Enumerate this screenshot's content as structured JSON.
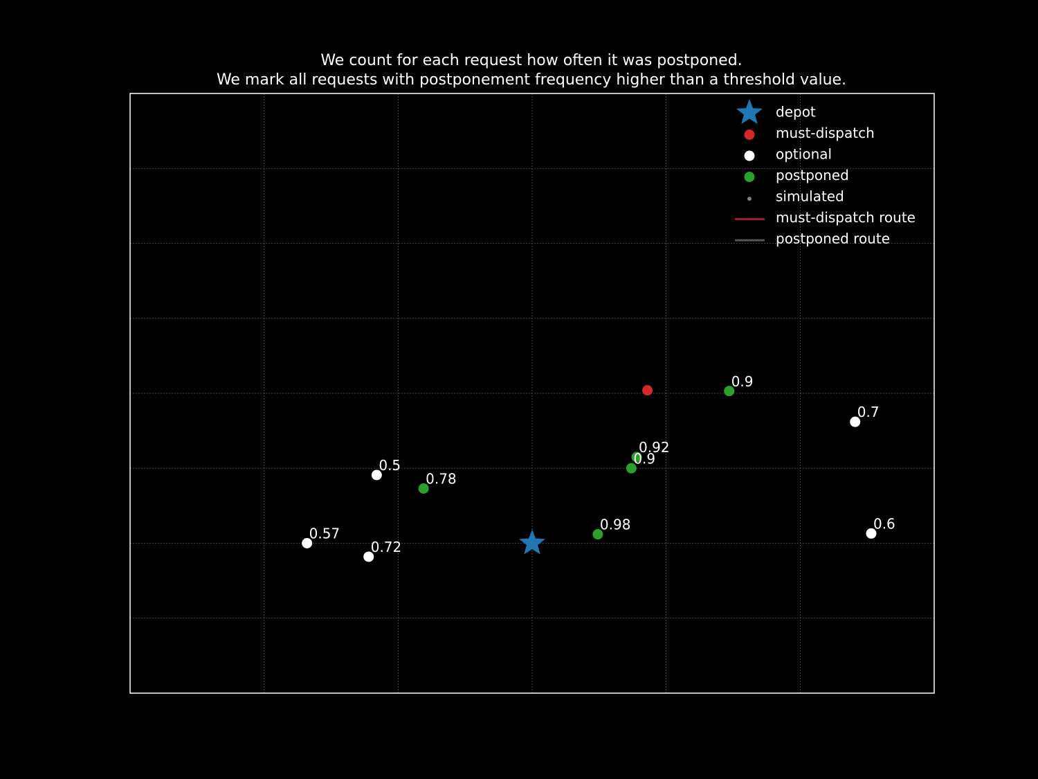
{
  "chart_data": {
    "type": "scatter",
    "title_lines": [
      "We count for each request how often it was postponed.",
      "We mark all requests with postponement frequency higher than a threshold value."
    ],
    "xlim": [
      0,
      6
    ],
    "ylim": [
      0,
      8
    ],
    "grid": true,
    "axis_ticks_visible": false,
    "legend_position": "top-right",
    "colors": {
      "depot": "#1f77b4",
      "must-dispatch": "#d62728",
      "optional": "#ffffff",
      "postponed": "#2ca02c",
      "simulated": "#7f7f7f",
      "must-dispatch route": "#a02020",
      "postponed route": "#555555"
    },
    "legend": [
      {
        "label": "depot",
        "kind": "star"
      },
      {
        "label": "must-dispatch",
        "kind": "dot"
      },
      {
        "label": "optional",
        "kind": "dot"
      },
      {
        "label": "postponed",
        "kind": "dot"
      },
      {
        "label": "simulated",
        "kind": "small-dot"
      },
      {
        "label": "must-dispatch route",
        "kind": "line"
      },
      {
        "label": "postponed route",
        "kind": "line"
      }
    ],
    "series": [
      {
        "name": "depot",
        "points": [
          {
            "x": 3.0,
            "y": 2.0,
            "label": ""
          }
        ]
      },
      {
        "name": "must-dispatch",
        "points": [
          {
            "x": 3.86,
            "y": 4.04,
            "label": ""
          }
        ]
      },
      {
        "name": "optional",
        "points": [
          {
            "x": 1.32,
            "y": 2.0,
            "label": "0.57"
          },
          {
            "x": 1.78,
            "y": 1.82,
            "label": "0.72"
          },
          {
            "x": 1.84,
            "y": 2.91,
            "label": "0.5"
          },
          {
            "x": 5.41,
            "y": 3.62,
            "label": "0.7"
          },
          {
            "x": 5.53,
            "y": 2.13,
            "label": "0.6"
          }
        ]
      },
      {
        "name": "postponed",
        "points": [
          {
            "x": 2.19,
            "y": 2.73,
            "label": "0.78"
          },
          {
            "x": 3.49,
            "y": 2.12,
            "label": "0.98"
          },
          {
            "x": 3.74,
            "y": 3.0,
            "label": "0.9"
          },
          {
            "x": 3.78,
            "y": 3.15,
            "label": "0.92"
          },
          {
            "x": 4.47,
            "y": 4.03,
            "label": "0.9"
          }
        ]
      },
      {
        "name": "simulated",
        "points": []
      }
    ]
  }
}
